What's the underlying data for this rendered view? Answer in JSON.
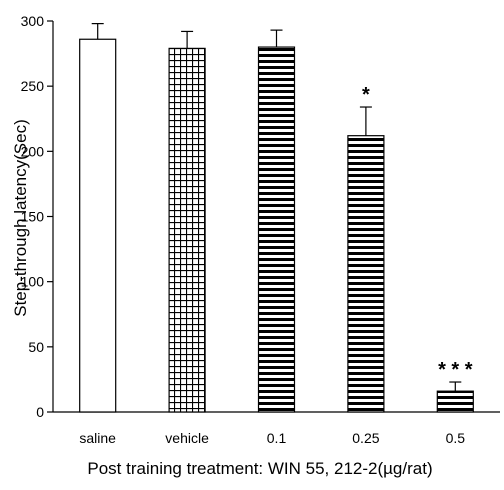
{
  "chart_data": {
    "type": "bar",
    "categories": [
      "saline",
      "vehicle",
      "0.1",
      "0.25",
      "0.5"
    ],
    "values": [
      286,
      279,
      280,
      212,
      16
    ],
    "errors": [
      12,
      13,
      13,
      22,
      7
    ],
    "patterns": [
      "none",
      "grid",
      "hstripe",
      "hstripe",
      "hstripe"
    ],
    "annotations": [
      "",
      "",
      "",
      "*",
      "* * *"
    ],
    "ylabel": "Step-through latency(Sec)",
    "xlabel": "Post training treatment: WIN 55, 212-2(µg/rat)",
    "ylim": [
      0,
      300
    ],
    "yticks": [
      0,
      50,
      100,
      150,
      200,
      250,
      300
    ],
    "grid": false
  }
}
